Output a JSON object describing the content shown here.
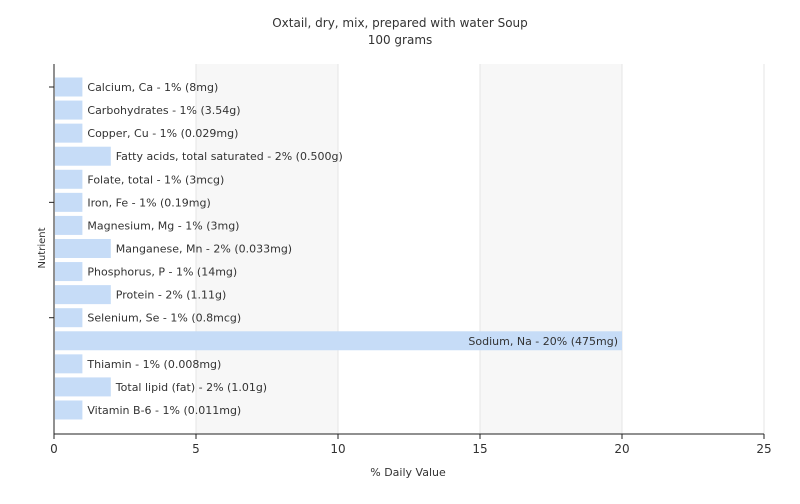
{
  "chart_data": {
    "type": "bar",
    "orientation": "horizontal",
    "title": "Oxtail, dry, mix, prepared with water Soup",
    "subtitle": "100 grams",
    "xlabel": "% Daily Value",
    "ylabel": "Nutrient",
    "xlim": [
      0,
      25
    ],
    "x_ticks": [
      0,
      5,
      10,
      15,
      20,
      25
    ],
    "grid": true,
    "bar_color": "#c6dcf7",
    "categories": [
      "Calcium, Ca",
      "Carbohydrates",
      "Copper, Cu",
      "Fatty acids, total saturated",
      "Folate, total",
      "Iron, Fe",
      "Magnesium, Mg",
      "Manganese, Mn",
      "Phosphorus, P",
      "Protein",
      "Selenium, Se",
      "Sodium, Na",
      "Thiamin",
      "Total lipid (fat)",
      "Vitamin B-6"
    ],
    "values": [
      1,
      1,
      1,
      2,
      1,
      1,
      1,
      2,
      1,
      2,
      1,
      20,
      1,
      2,
      1
    ],
    "data_labels": [
      "Calcium, Ca - 1% (8mg)",
      "Carbohydrates - 1% (3.54g)",
      "Copper, Cu - 1% (0.029mg)",
      "Fatty acids, total saturated - 2% (0.500g)",
      "Folate, total - 1% (3mcg)",
      "Iron, Fe - 1% (0.19mg)",
      "Magnesium, Mg - 1% (3mg)",
      "Manganese, Mn - 2% (0.033mg)",
      "Phosphorus, P - 1% (14mg)",
      "Protein - 2% (1.11g)",
      "Selenium, Se - 1% (0.8mcg)",
      "Sodium, Na - 20% (475mg)",
      "Thiamin - 1% (0.008mg)",
      "Total lipid (fat) - 2% (1.01g)",
      "Vitamin B-6 - 1% (0.011mg)"
    ]
  }
}
